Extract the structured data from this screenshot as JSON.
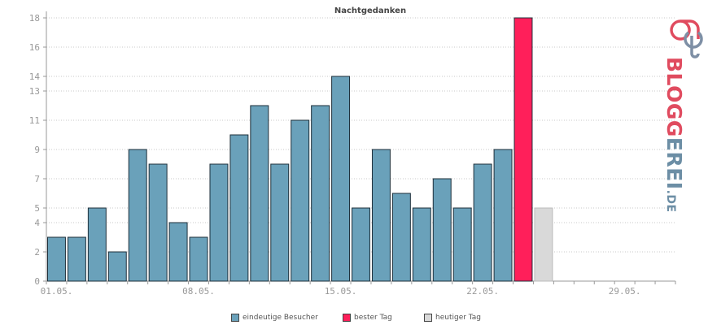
{
  "chart_data": {
    "type": "bar",
    "title": "Nachtgedanken",
    "xlabel": "",
    "ylabel": "",
    "ylim": [
      0,
      18
    ],
    "y_ticks": [
      "0",
      "2",
      "4",
      "5",
      "7",
      "9",
      "11",
      "13",
      "14",
      "16",
      "18"
    ],
    "y_tick_values": [
      0,
      2,
      4,
      5,
      7,
      9,
      11,
      13,
      14,
      16,
      18
    ],
    "x_tick_labels": [
      "01.05.",
      "08.05.",
      "15.05.",
      "22.05.",
      "29.05."
    ],
    "x_tick_days": [
      1,
      8,
      15,
      22,
      29
    ],
    "days_total": 31,
    "grid": true,
    "series": [
      {
        "name": "eindeutige Besucher",
        "color": "#6aa1ba",
        "days": [
          1,
          2,
          3,
          4,
          5,
          6,
          7,
          8,
          9,
          10,
          11,
          12,
          13,
          14,
          15,
          16,
          17,
          18,
          19,
          20,
          21,
          22,
          23
        ],
        "values": [
          3,
          3,
          5,
          2,
          9,
          8,
          4,
          3,
          8,
          10,
          12,
          8,
          11,
          12,
          14,
          5,
          9,
          6,
          5,
          7,
          5,
          8,
          9
        ]
      },
      {
        "name": "bester Tag",
        "color": "#ff1f5a",
        "days": [
          24
        ],
        "values": [
          18
        ]
      },
      {
        "name": "heutiger Tag",
        "color": "#d9d9d9",
        "days": [
          25
        ],
        "values": [
          5
        ]
      }
    ]
  },
  "legend": {
    "visitors_label": "eindeutige Besucher",
    "best_label": "bester Tag",
    "today_label": "heutiger Tag",
    "visitors_color": "#6aa1ba",
    "best_color": "#ff1f5a",
    "today_color": "#d9d9d9"
  },
  "logo": {
    "part1": "BLOGG",
    "part2": "EREI",
    "tld": ".DE"
  }
}
